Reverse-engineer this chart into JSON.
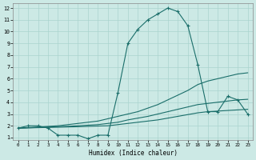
{
  "xlabel": "Humidex (Indice chaleur)",
  "background_color": "#cce9e5",
  "grid_color": "#aad4cf",
  "line_color": "#1a6e6a",
  "xlim": [
    -0.5,
    23.5
  ],
  "ylim": [
    0.8,
    12.4
  ],
  "yticks": [
    1,
    2,
    3,
    4,
    5,
    6,
    7,
    8,
    9,
    10,
    11,
    12
  ],
  "xticks": [
    0,
    1,
    2,
    3,
    4,
    5,
    6,
    7,
    8,
    9,
    10,
    11,
    12,
    13,
    14,
    15,
    16,
    17,
    18,
    19,
    20,
    21,
    22,
    23
  ],
  "line_main_x": [
    0,
    1,
    2,
    3,
    4,
    5,
    6,
    7,
    8,
    9,
    10,
    11,
    12,
    13,
    14,
    15,
    16,
    17,
    18,
    19,
    20,
    21,
    22,
    23
  ],
  "line_main_y": [
    1.8,
    2.0,
    2.0,
    1.8,
    1.2,
    1.2,
    1.2,
    0.9,
    1.2,
    1.2,
    4.8,
    9.0,
    10.2,
    11.0,
    11.5,
    12.0,
    11.7,
    10.5,
    7.2,
    3.2,
    3.2,
    4.5,
    4.2,
    3.0
  ],
  "line_upper_x": [
    0,
    1,
    2,
    3,
    4,
    5,
    6,
    7,
    8,
    9,
    10,
    11,
    12,
    13,
    14,
    15,
    16,
    17,
    18,
    19,
    20,
    21,
    22,
    23
  ],
  "line_upper_y": [
    1.8,
    1.85,
    1.9,
    1.95,
    2.0,
    2.1,
    2.2,
    2.3,
    2.4,
    2.6,
    2.8,
    3.0,
    3.2,
    3.5,
    3.8,
    4.2,
    4.6,
    5.0,
    5.5,
    5.8,
    6.0,
    6.2,
    6.4,
    6.5
  ],
  "line_mid_x": [
    0,
    1,
    2,
    3,
    4,
    5,
    6,
    7,
    8,
    9,
    10,
    11,
    12,
    13,
    14,
    15,
    16,
    17,
    18,
    19,
    20,
    21,
    22,
    23
  ],
  "line_mid_y": [
    1.8,
    1.83,
    1.86,
    1.9,
    1.93,
    1.96,
    2.0,
    2.05,
    2.1,
    2.2,
    2.3,
    2.5,
    2.65,
    2.8,
    3.0,
    3.2,
    3.4,
    3.6,
    3.8,
    3.9,
    4.0,
    4.1,
    4.2,
    4.25
  ],
  "line_lower_x": [
    0,
    1,
    2,
    3,
    4,
    5,
    6,
    7,
    8,
    9,
    10,
    11,
    12,
    13,
    14,
    15,
    16,
    17,
    18,
    19,
    20,
    21,
    22,
    23
  ],
  "line_lower_y": [
    1.8,
    1.82,
    1.84,
    1.86,
    1.88,
    1.9,
    1.92,
    1.95,
    1.98,
    2.0,
    2.1,
    2.2,
    2.3,
    2.4,
    2.5,
    2.65,
    2.8,
    2.95,
    3.1,
    3.2,
    3.25,
    3.3,
    3.35,
    3.4
  ]
}
